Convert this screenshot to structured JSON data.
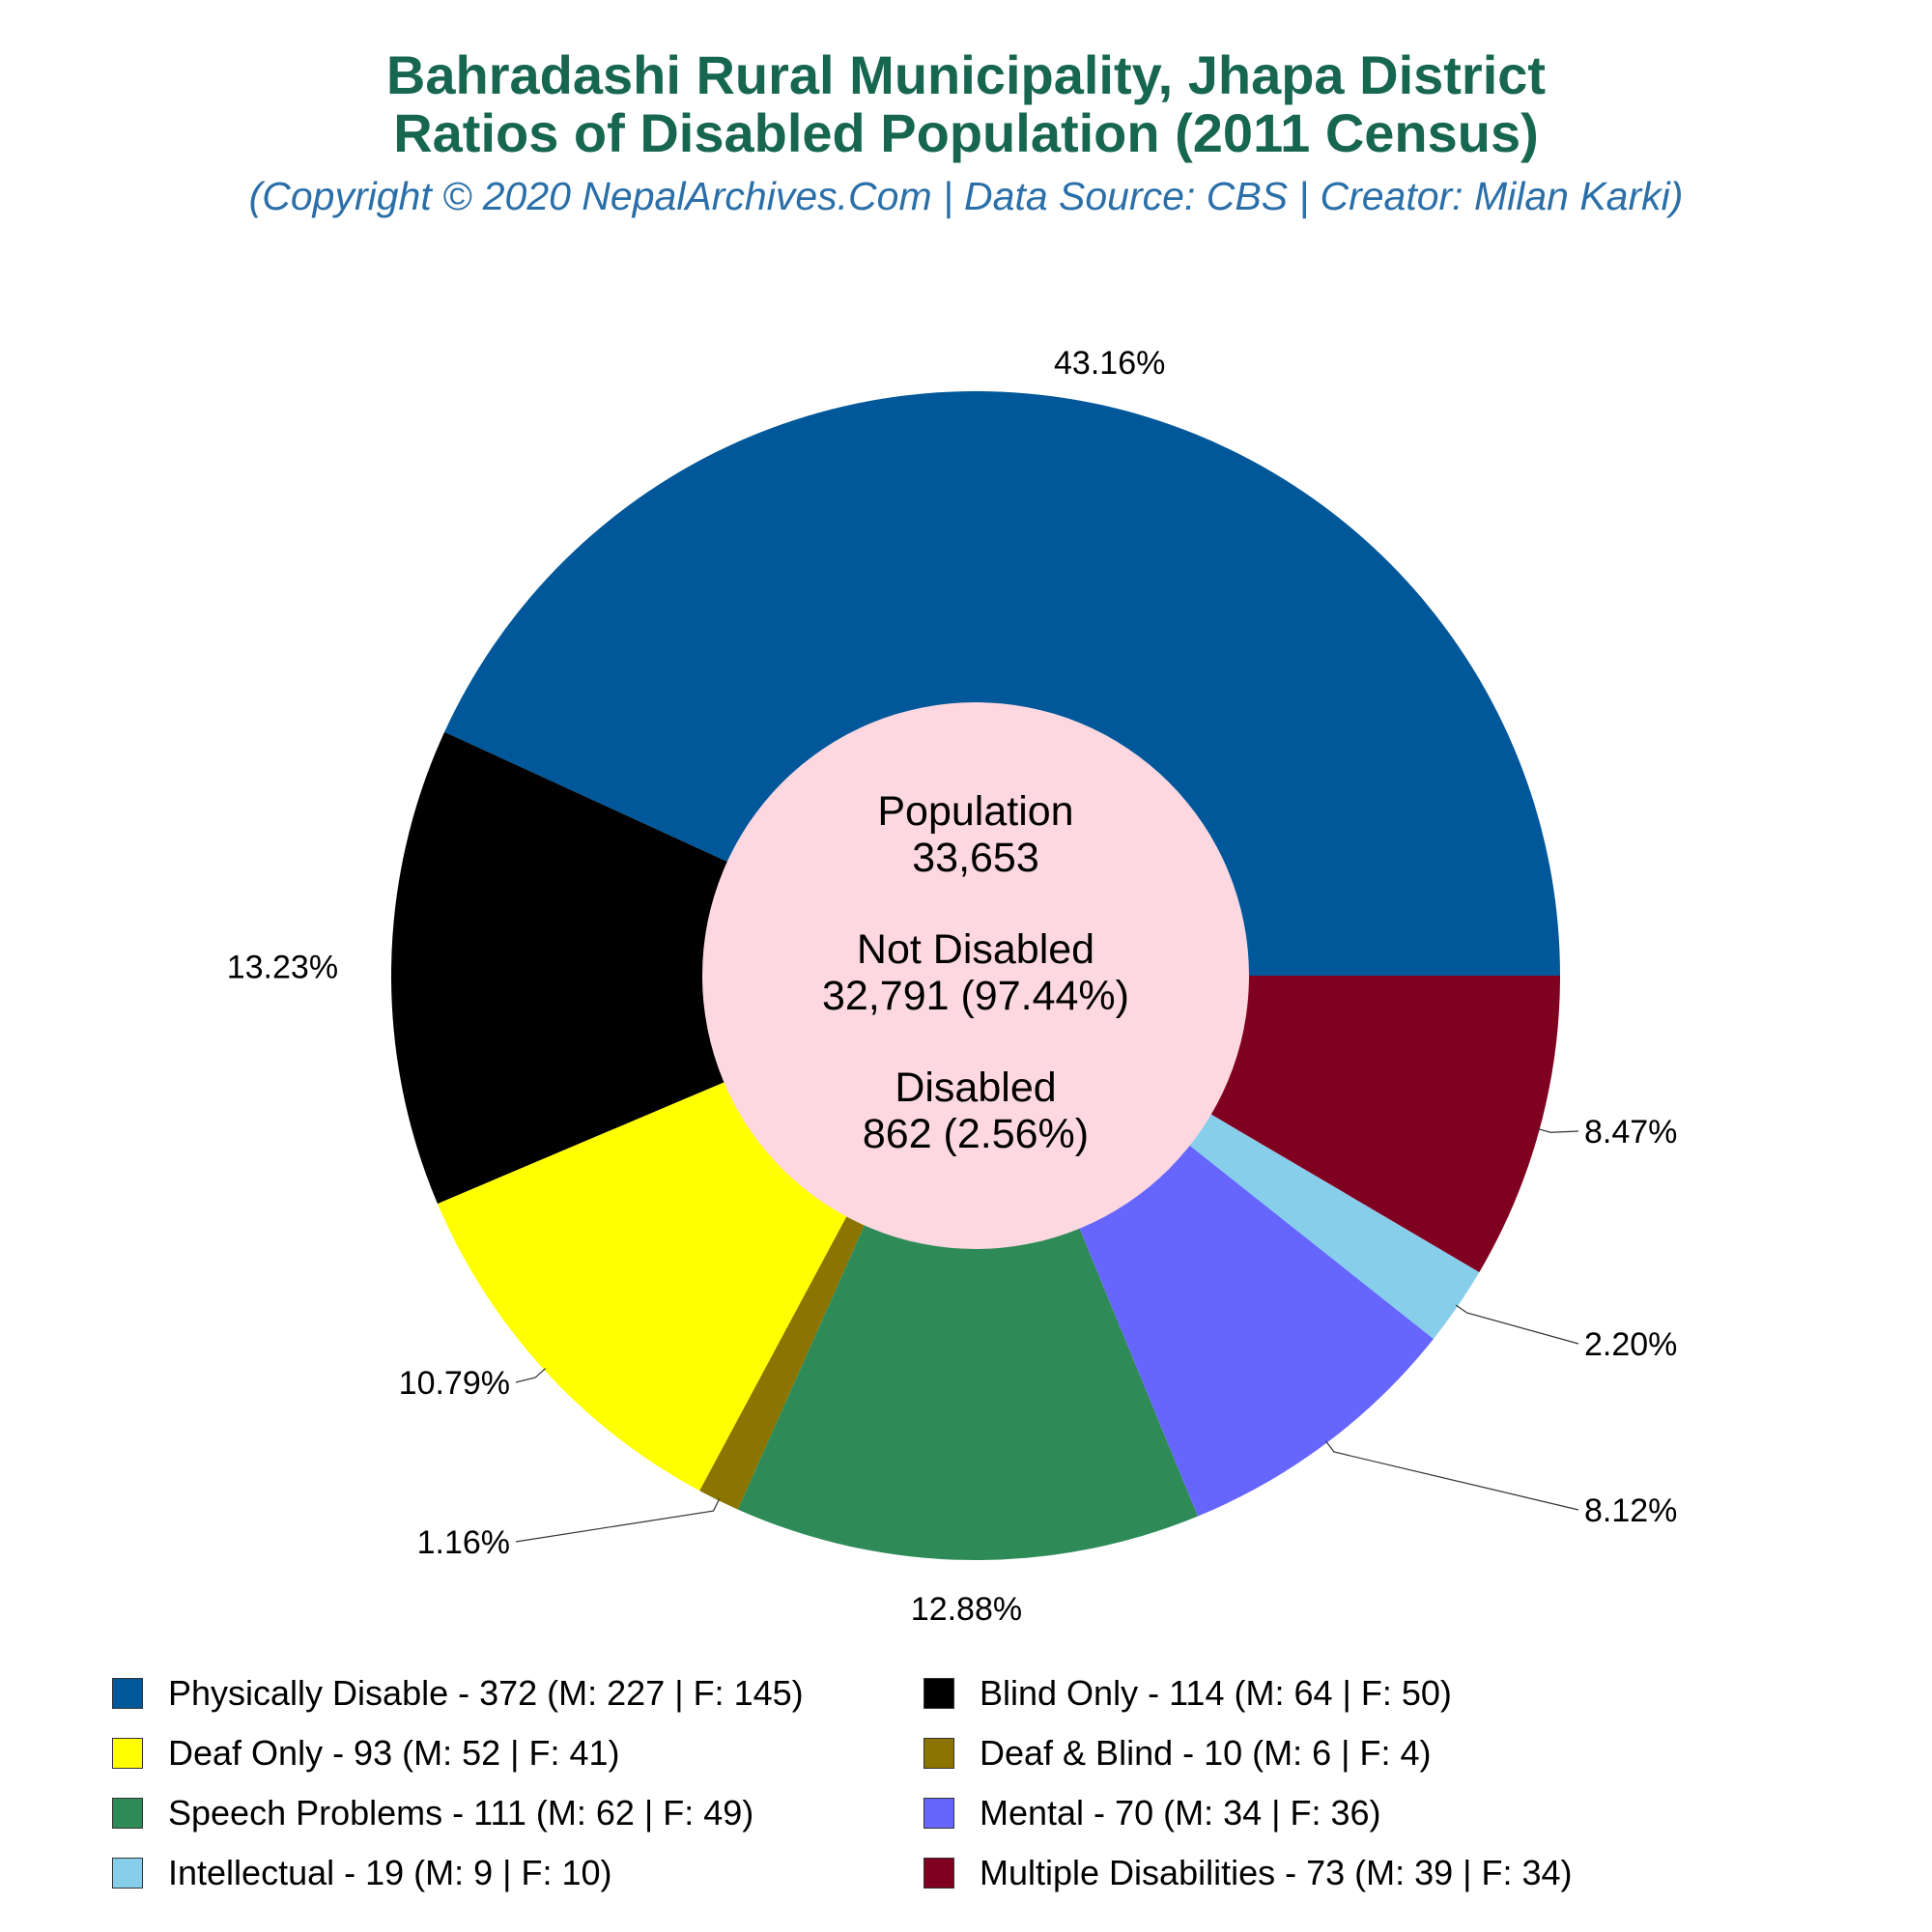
{
  "chart_data": {
    "type": "pie",
    "title": "Bahradashi Rural Municipality, Jhapa District",
    "subtitle_line": "Ratios of Disabled Population (2011 Census)",
    "credit": "(Copyright © 2020 NepalArchives.Com | Data Source: CBS | Creator: Milan Karki)",
    "center": {
      "population_label": "Population",
      "population_value": "33,653",
      "not_disabled_label": "Not Disabled",
      "not_disabled_value": "32,791 (97.44%)",
      "disabled_label": "Disabled",
      "disabled_value": "862 (2.56%)"
    },
    "start_angle_deg": 0,
    "direction": "counterclockwise",
    "slices": [
      {
        "legend": "Physically Disable - 372 (M: 227 | F: 145)",
        "value": 372,
        "percent": "43.16%",
        "color": "#00589a"
      },
      {
        "legend": "Blind Only - 114 (M: 64 | F: 50)",
        "value": 114,
        "percent": "13.23%",
        "color": "#000000"
      },
      {
        "legend": "Deaf Only - 93 (M: 52 | F: 41)",
        "value": 93,
        "percent": "10.79%",
        "color": "#ffff00"
      },
      {
        "legend": "Deaf & Blind - 10 (M: 6 | F: 4)",
        "value": 10,
        "percent": "1.16%",
        "color": "#8b7500"
      },
      {
        "legend": "Speech Problems - 111 (M: 62 | F: 49)",
        "value": 111,
        "percent": "12.88%",
        "color": "#2e8b57"
      },
      {
        "legend": "Mental - 70 (M: 34 | F: 36)",
        "value": 70,
        "percent": "8.12%",
        "color": "#6666ff"
      },
      {
        "legend": "Intellectual - 19 (M: 9 | F: 10)",
        "value": 19,
        "percent": "2.20%",
        "color": "#87ceeb"
      },
      {
        "legend": "Multiple Disabilities - 73 (M: 39 | F: 34)",
        "value": 73,
        "percent": "8.47%",
        "color": "#800020"
      }
    ],
    "center_fill": "#fdd8e0",
    "legend_position": "bottom"
  }
}
